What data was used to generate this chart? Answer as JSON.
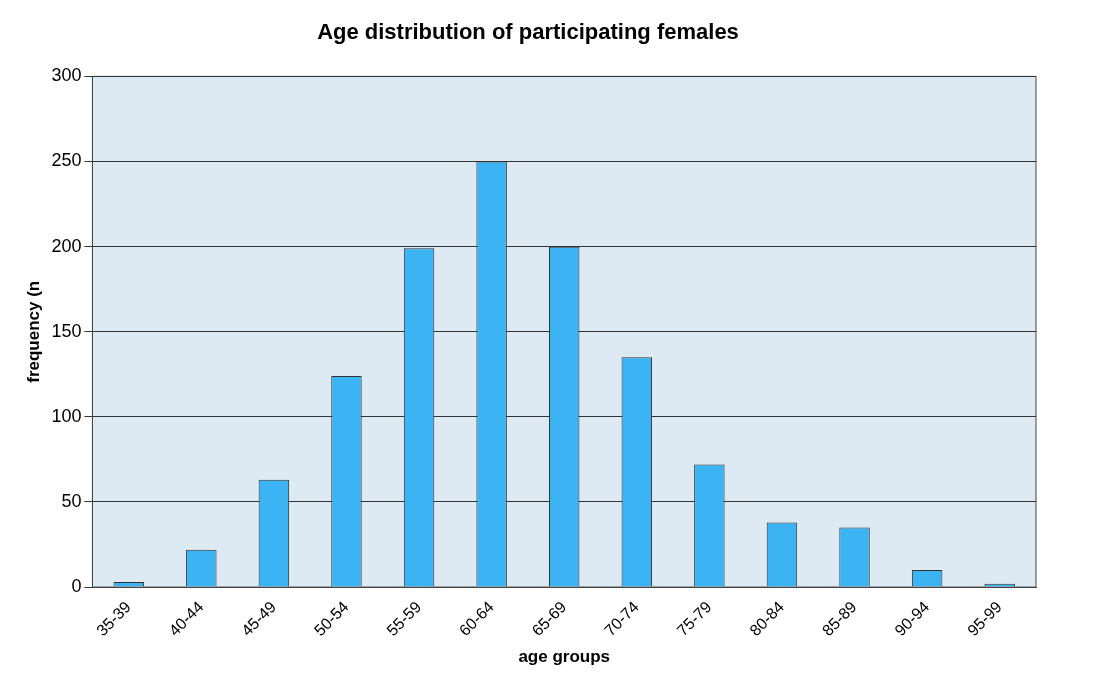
{
  "chart_data": {
    "type": "bar",
    "title": "Age distribution of participating females",
    "xlabel": "age groups",
    "ylabel": "frequency (n",
    "categories": [
      "35-39",
      "40-44",
      "45-49",
      "50-54",
      "55-59",
      "60-64",
      "65-69",
      "70-74",
      "75-79",
      "80-84",
      "85-89",
      "90-94",
      "95-99"
    ],
    "values": [
      3,
      22,
      63,
      124,
      199,
      250,
      200,
      135,
      72,
      38,
      35,
      10,
      2
    ],
    "color": "#3cb4f4",
    "ylim": [
      0,
      300
    ],
    "yticks": [
      0,
      50,
      100,
      150,
      200,
      250,
      300
    ],
    "grid": "y",
    "legend": false
  }
}
